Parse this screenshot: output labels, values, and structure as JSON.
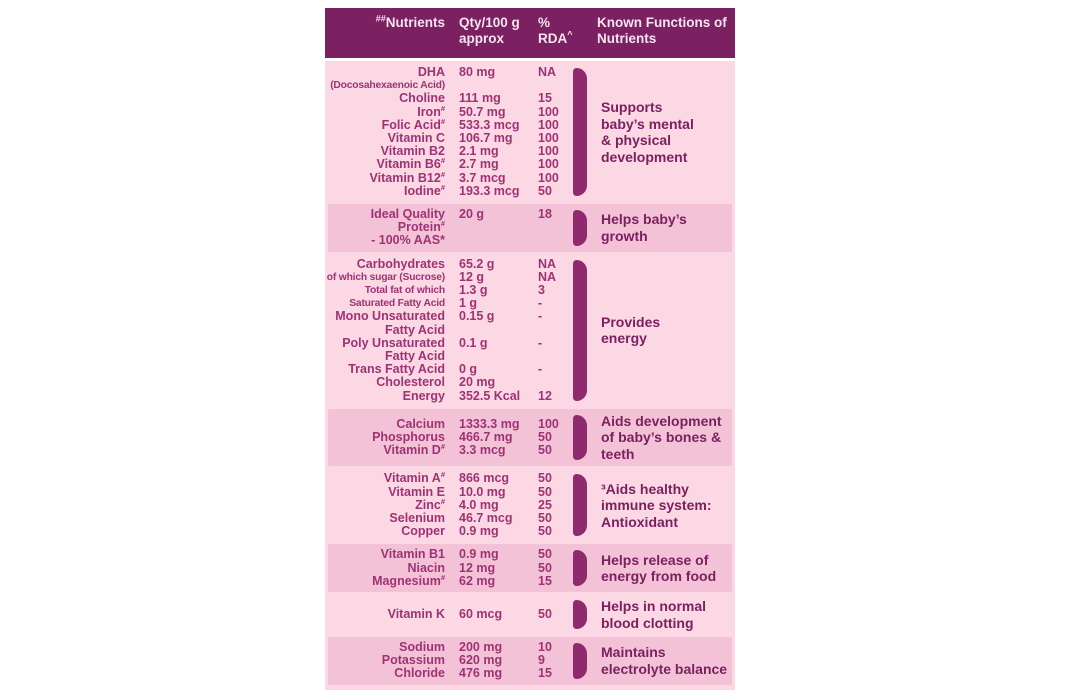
{
  "colors": {
    "header_bg": "#7b2061",
    "header_text": "#f6e4ef",
    "light_row_bg": "#fcd8e4",
    "dark_row_bg": "#f4c2d6",
    "row_text": "#9d3374",
    "function_text": "#7b2061",
    "bracket": "#8e2a6d",
    "page_bg": "#ffffff"
  },
  "table": {
    "header": {
      "nutrients_mark": "##",
      "nutrients_label": "Nutrients",
      "qty_label": "Qty/100 g approx",
      "rda_label": "% RDA",
      "rda_mark": "^",
      "functions_label": "Known Functions of Nutrients"
    },
    "sections": [
      {
        "tone": "light",
        "rows": [
          {
            "label": "DHA",
            "qty": "80 mg",
            "rda": "NA"
          },
          {
            "label": "(Docosahexaenoic Acid)",
            "small": true,
            "qty": "",
            "rda": ""
          },
          {
            "label": "Choline",
            "qty": "111 mg",
            "rda": "15"
          },
          {
            "label": "Iron#",
            "qty": "50.7 mg",
            "rda": "100"
          },
          {
            "label": "Folic Acid#",
            "qty": "533.3 mcg",
            "rda": "100"
          },
          {
            "label": "Vitamin C",
            "qty": "106.7 mg",
            "rda": "100"
          },
          {
            "label": "Vitamin B2",
            "qty": "2.1 mg",
            "rda": "100"
          },
          {
            "label": "Vitamin B6#",
            "qty": "2.7 mg",
            "rda": "100"
          },
          {
            "label": "Vitamin B12#",
            "qty": "3.7 mcg",
            "rda": "100"
          },
          {
            "label": "Iodine#",
            "qty": "193.3 mcg",
            "rda": "50"
          }
        ],
        "function_lines": [
          "Supports",
          "baby’s mental",
          "& physical",
          "development"
        ]
      },
      {
        "tone": "dark",
        "rows": [
          {
            "label": "Ideal Quality",
            "qty": "20 g",
            "rda": "18"
          },
          {
            "label": "Protein#",
            "qty": "",
            "rda": ""
          },
          {
            "label": "- 100% AAS*",
            "qty": "",
            "rda": ""
          }
        ],
        "function_lines": [
          "Helps baby’s",
          "growth"
        ]
      },
      {
        "tone": "light",
        "rows": [
          {
            "label": "Carbohydrates",
            "qty": "65.2 g",
            "rda": "NA"
          },
          {
            "label": "of which sugar (Sucrose)",
            "small": true,
            "qty": "12 g",
            "rda": "NA"
          },
          {
            "label": "Total fat of which",
            "small": true,
            "qty": "1.3 g",
            "rda": "3"
          },
          {
            "label": "Saturated Fatty Acid",
            "small": true,
            "qty": "1 g",
            "rda": "-"
          },
          {
            "label": "Mono Unsaturated",
            "qty": "0.15 g",
            "rda": "-"
          },
          {
            "label": "Fatty Acid",
            "qty": "",
            "rda": ""
          },
          {
            "label": "Poly Unsaturated",
            "qty": "0.1 g",
            "rda": "-"
          },
          {
            "label": "Fatty Acid",
            "qty": "",
            "rda": ""
          },
          {
            "label": "Trans Fatty Acid",
            "qty": "0 g",
            "rda": "-"
          },
          {
            "label": "Cholesterol",
            "qty": "20 mg",
            "rda": ""
          },
          {
            "label": "Energy",
            "qty": "352.5 Kcal",
            "rda": "12"
          }
        ],
        "function_lines": [
          "Provides",
          "energy"
        ]
      },
      {
        "tone": "dark",
        "rows": [
          {
            "label": "Calcium",
            "qty": "1333.3 mg",
            "rda": "100"
          },
          {
            "label": "Phosphorus",
            "qty": "466.7 mg",
            "rda": "50"
          },
          {
            "label": "Vitamin D#",
            "qty": "3.3 mcg",
            "rda": "50"
          }
        ],
        "function_lines": [
          "Aids development",
          "of baby’s bones &",
          "teeth"
        ]
      },
      {
        "tone": "light",
        "rows": [
          {
            "label": "Vitamin A#",
            "qty": "866 mcg",
            "rda": "50"
          },
          {
            "label": "Vitamin E",
            "qty": "10.0 mg",
            "rda": "50"
          },
          {
            "label": "Zinc#",
            "qty": "4.0 mg",
            "rda": "25"
          },
          {
            "label": "Selenium",
            "qty": "46.7 mcg",
            "rda": "50"
          },
          {
            "label": "Copper",
            "qty": "0.9 mg",
            "rda": "50"
          }
        ],
        "function_lines": [
          "³Aids healthy",
          "immune system:",
          "Antioxidant"
        ]
      },
      {
        "tone": "dark",
        "rows": [
          {
            "label": "Vitamin B1",
            "qty": "0.9 mg",
            "rda": "50"
          },
          {
            "label": "Niacin",
            "qty": "12 mg",
            "rda": "50"
          },
          {
            "label": "Magnesium#",
            "qty": "62 mg",
            "rda": "15"
          }
        ],
        "function_lines": [
          "Helps release of",
          "energy from food"
        ]
      },
      {
        "tone": "light",
        "rows": [
          {
            "label": "Vitamin K",
            "qty": "60 mcg",
            "rda": "50"
          }
        ],
        "function_lines": [
          "Helps in normal",
          "blood clotting"
        ]
      },
      {
        "tone": "dark",
        "rows": [
          {
            "label": "Sodium",
            "qty": "200 mg",
            "rda": "10"
          },
          {
            "label": "Potassium",
            "qty": "620 mg",
            "rda": "9"
          },
          {
            "label": "Chloride",
            "qty": "476 mg",
            "rda": "15"
          }
        ],
        "function_lines": [
          "Maintains",
          "electrolyte balance"
        ]
      }
    ]
  }
}
